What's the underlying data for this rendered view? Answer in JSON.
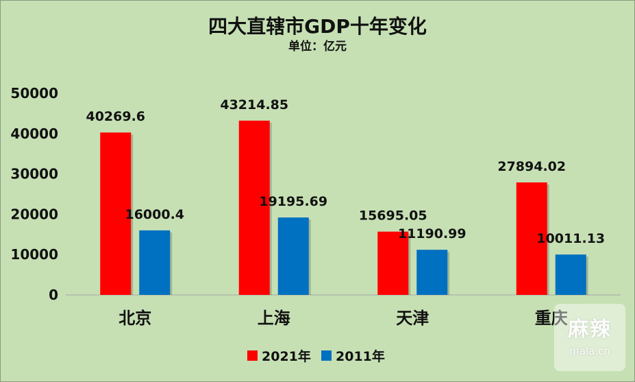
{
  "chart_data": {
    "type": "bar",
    "title": "四大直辖市GDP十年变化",
    "subtitle": "单位：亿元",
    "categories": [
      "北京",
      "上海",
      "天津",
      "重庆"
    ],
    "series": [
      {
        "name": "2021年",
        "color": "#ff0000",
        "values": [
          40269.6,
          43214.85,
          15695.05,
          27894.02
        ],
        "labels": [
          "40269.6",
          "43214.85",
          "15695.05",
          "27894.02"
        ]
      },
      {
        "name": "2011年",
        "color": "#0070c0",
        "values": [
          16000.4,
          19195.69,
          11190.99,
          10011.13
        ],
        "labels": [
          "16000.4",
          "19195.69",
          "11190.99",
          "10011.13"
        ]
      }
    ],
    "ylim": [
      0,
      50000
    ],
    "yticks": [
      "0",
      "10000",
      "20000",
      "30000",
      "40000",
      "50000"
    ],
    "grid": false,
    "legend": "bottom-center"
  },
  "watermark": {
    "main": "麻辣",
    "sub": "mala.cn"
  }
}
